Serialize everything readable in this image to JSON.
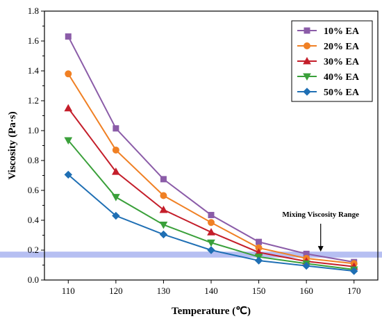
{
  "chart_data": {
    "type": "line",
    "title": "",
    "xlabel": "Temperature (℃)",
    "ylabel": "Viscosity (Pa·s)",
    "xlim": [
      105,
      175
    ],
    "ylim": [
      0.0,
      1.8
    ],
    "x": [
      110,
      120,
      130,
      140,
      150,
      160,
      170
    ],
    "x_ticks": [
      "110",
      "120",
      "130",
      "140",
      "150",
      "160",
      "170"
    ],
    "y_ticks": [
      "0.0",
      "0.2",
      "0.4",
      "0.6",
      "0.8",
      "1.0",
      "1.2",
      "1.4",
      "1.6",
      "1.8"
    ],
    "grid": false,
    "legend_position": "top-right",
    "series": [
      {
        "name": "10% EA",
        "color": "#8B5CA8",
        "marker": "square",
        "values": [
          1.63,
          1.015,
          0.675,
          0.435,
          0.255,
          0.175,
          0.12
        ]
      },
      {
        "name": "20% EA",
        "color": "#F08024",
        "marker": "circle",
        "values": [
          1.38,
          0.87,
          0.565,
          0.385,
          0.215,
          0.145,
          0.11
        ]
      },
      {
        "name": "30% EA",
        "color": "#C41E2A",
        "marker": "triangle-up",
        "values": [
          1.15,
          0.725,
          0.47,
          0.32,
          0.185,
          0.125,
          0.09
        ]
      },
      {
        "name": "40% EA",
        "color": "#3AA03A",
        "marker": "triangle-down",
        "values": [
          0.935,
          0.555,
          0.37,
          0.25,
          0.155,
          0.11,
          0.07
        ]
      },
      {
        "name": "50% EA",
        "color": "#1F6FB4",
        "marker": "diamond",
        "values": [
          0.705,
          0.43,
          0.305,
          0.2,
          0.13,
          0.095,
          0.06
        ]
      }
    ],
    "band": {
      "y_range": [
        0.15,
        0.19
      ],
      "color": "#A9B4F0"
    },
    "annotation": {
      "text": "Mixing Viscosity Range",
      "x": 163,
      "arrow_tip_y": 0.19
    }
  }
}
